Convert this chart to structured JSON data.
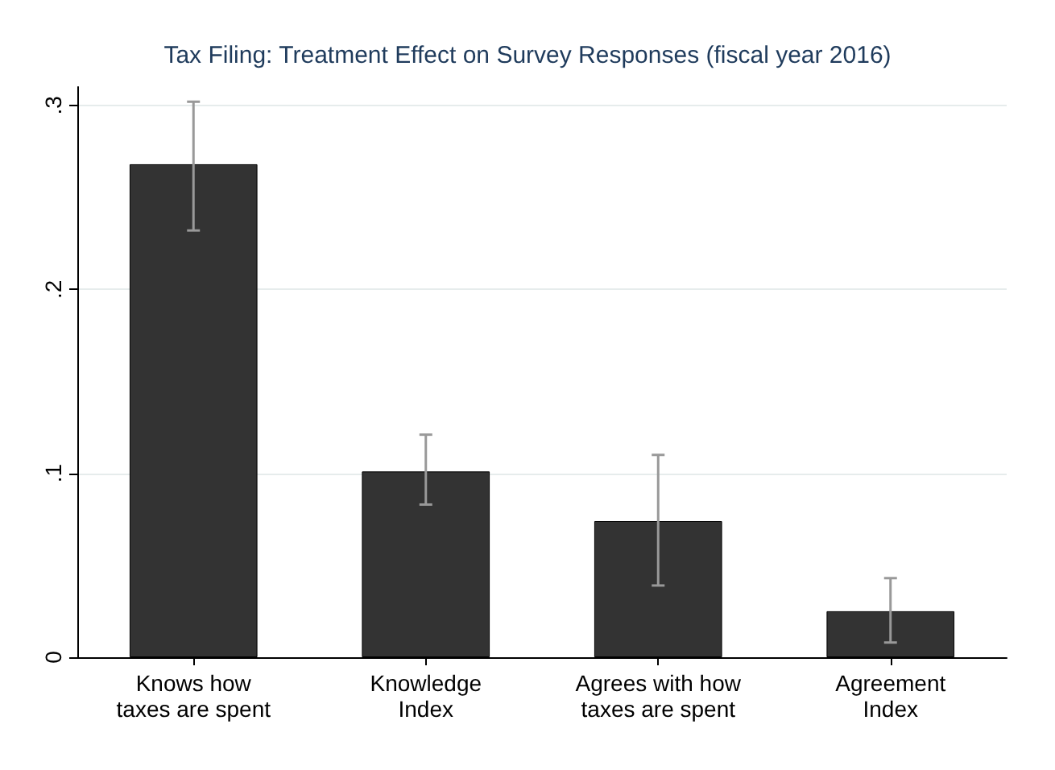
{
  "chart_data": {
    "type": "bar",
    "title": "Tax Filing: Treatment Effect on Survey Responses (fiscal year 2016)",
    "categories": [
      "Knows how\ntaxes are spent",
      "Knowledge\nIndex",
      "Agrees with how\ntaxes are spent",
      "Agreement\nIndex"
    ],
    "values": [
      0.268,
      0.101,
      0.074,
      0.025
    ],
    "errors": [
      [
        0.232,
        0.302
      ],
      [
        0.083,
        0.121
      ],
      [
        0.039,
        0.11
      ],
      [
        0.008,
        0.043
      ]
    ],
    "color": "#333333",
    "ylim": [
      0,
      0.31
    ],
    "yticks": [
      {
        "value": 0,
        "label": "0"
      },
      {
        "value": 0.1,
        "label": ".1"
      },
      {
        "value": 0.2,
        "label": ".2"
      },
      {
        "value": 0.3,
        "label": ".3"
      }
    ],
    "grid": "y"
  }
}
